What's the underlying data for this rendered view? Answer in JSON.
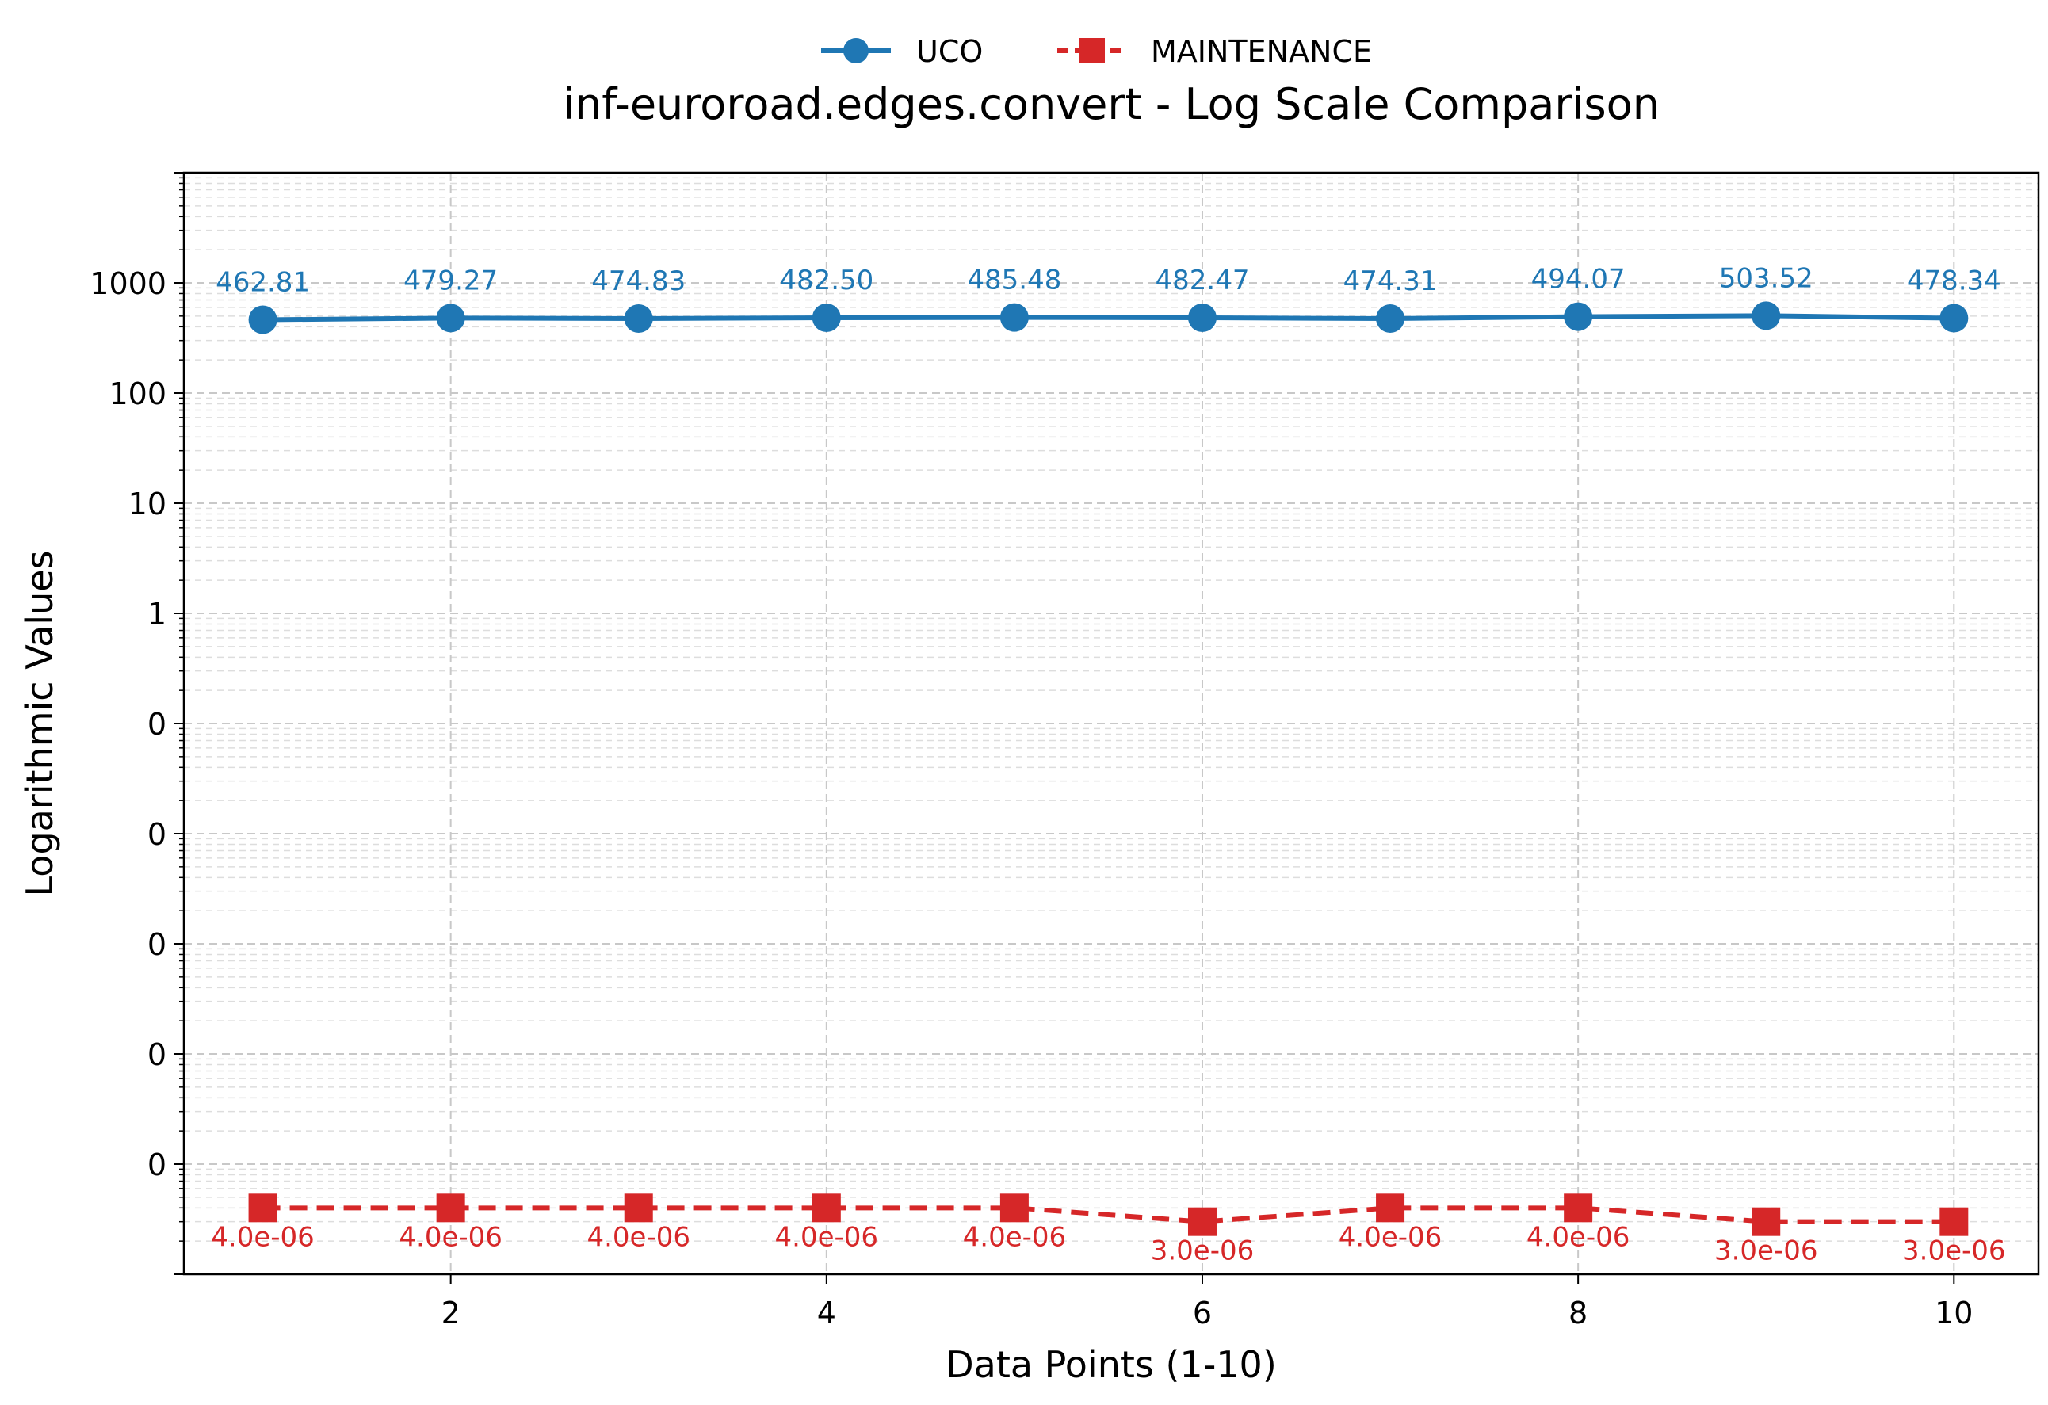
{
  "chart_data": {
    "type": "line",
    "title": "inf-euroroad.edges.convert - Log Scale Comparison",
    "xlabel": "Data Points (1-10)",
    "ylabel": "Logarithmic Values",
    "yscale": "log",
    "xlim": [
      0.58,
      10.45
    ],
    "ylim": [
      1e-06,
      10000
    ],
    "grid": true,
    "legend": "top-center",
    "x_ticks": [
      {
        "value": 2,
        "label": "2"
      },
      {
        "value": 4,
        "label": "4"
      },
      {
        "value": 6,
        "label": "6"
      },
      {
        "value": 8,
        "label": "8"
      },
      {
        "value": 10,
        "label": "10"
      }
    ],
    "y_ticks": [
      {
        "value": 1000,
        "label": "1000"
      },
      {
        "value": 100,
        "label": "100"
      },
      {
        "value": 10,
        "label": "10"
      },
      {
        "value": 1,
        "label": "1"
      },
      {
        "value": 0.1,
        "label": "0"
      },
      {
        "value": 0.01,
        "label": "0"
      },
      {
        "value": 0.001,
        "label": "0"
      },
      {
        "value": 0.0001,
        "label": "0"
      },
      {
        "value": 1e-05,
        "label": "0"
      }
    ],
    "x": [
      1,
      2,
      3,
      4,
      5,
      6,
      7,
      8,
      9,
      10
    ],
    "series": [
      {
        "name": "UCO",
        "color": "#1f77b4",
        "marker": "circle",
        "linestyle": "solid",
        "values": [
          462.81,
          479.27,
          474.83,
          482.5,
          485.48,
          482.47,
          474.31,
          494.07,
          503.52,
          478.34
        ],
        "labels": [
          "462.81",
          "479.27",
          "474.83",
          "482.50",
          "485.48",
          "482.47",
          "474.31",
          "494.07",
          "503.52",
          "478.34"
        ]
      },
      {
        "name": "MAINTENANCE",
        "color": "#d62728",
        "marker": "square",
        "linestyle": "dashed",
        "values": [
          4e-06,
          4e-06,
          4e-06,
          4e-06,
          4e-06,
          3e-06,
          4e-06,
          4e-06,
          3e-06,
          3e-06
        ],
        "labels": [
          "4.0e-06",
          "4.0e-06",
          "4.0e-06",
          "4.0e-06",
          "4.0e-06",
          "3.0e-06",
          "4.0e-06",
          "4.0e-06",
          "3.0e-06",
          "3.0e-06"
        ]
      }
    ]
  }
}
